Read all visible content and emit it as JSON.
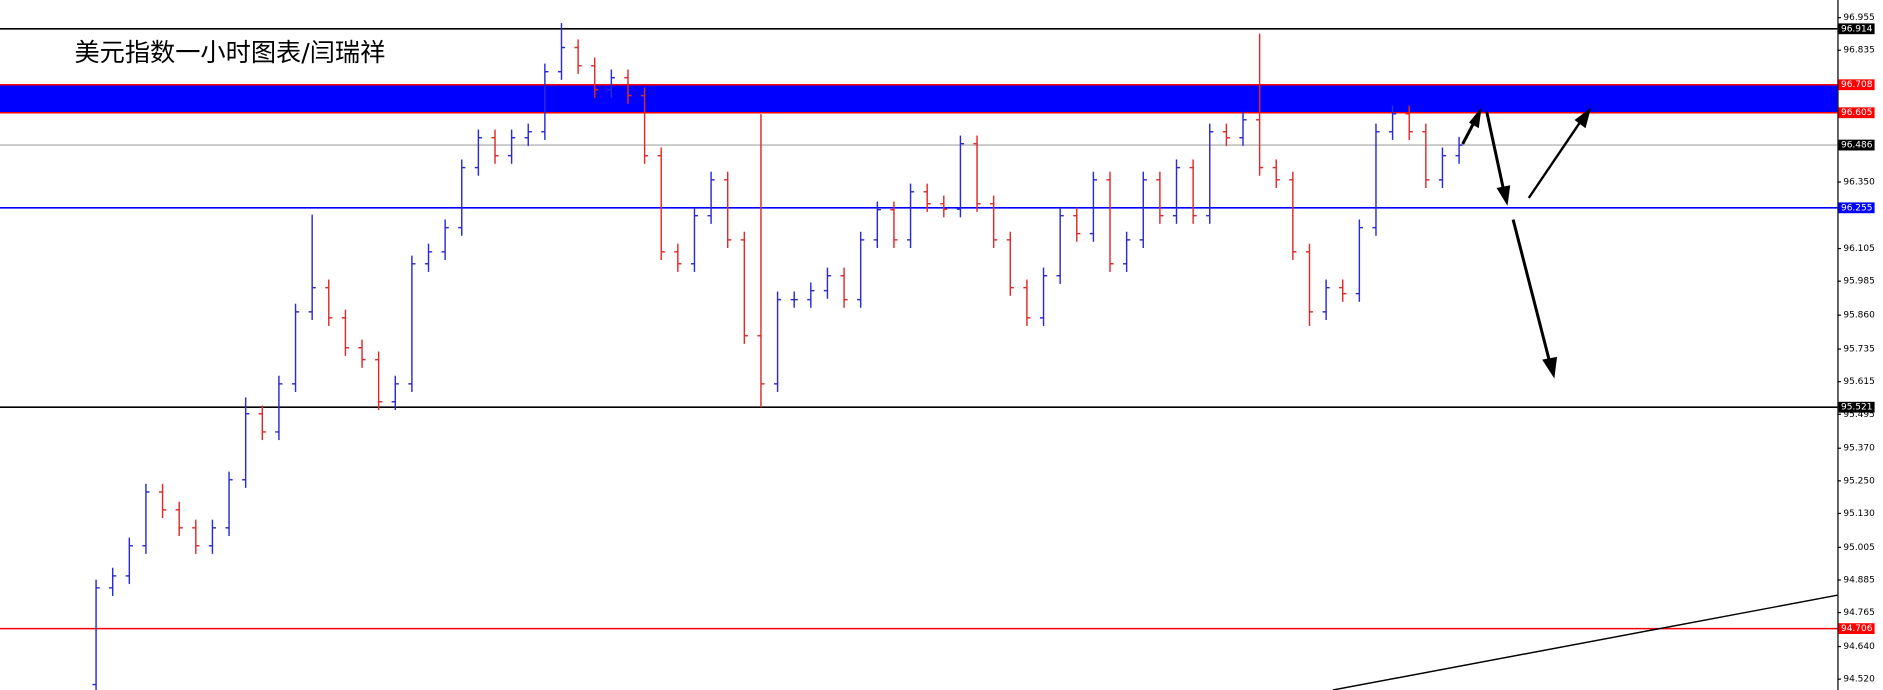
{
  "chart_data": {
    "type": "ohlc",
    "title": "美元指数一小时图表/闫瑞祥",
    "up_color": "#2b2bd6",
    "down_color": "#e02a2a",
    "open": [
      94.5,
      94.856,
      94.9,
      95.011,
      95.209,
      95.143,
      95.077,
      95.011,
      95.077,
      95.254,
      95.497,
      95.43,
      95.607,
      95.872,
      95.961,
      95.85,
      95.74,
      95.696,
      95.541,
      95.607,
      96.049,
      96.093,
      96.182,
      96.403,
      96.513,
      96.447,
      96.513,
      96.535,
      96.756,
      96.845,
      96.778,
      96.69,
      96.734,
      96.668,
      96.447,
      96.093,
      96.049,
      96.226,
      96.358,
      96.137,
      95.784,
      95.607,
      95.917,
      95.917,
      95.95,
      96.005,
      95.917,
      96.137,
      96.248,
      96.137,
      96.314,
      96.27,
      96.25,
      96.491,
      96.27,
      96.137,
      95.961,
      95.85,
      96.005,
      96.226,
      96.16,
      96.358,
      96.049,
      96.137,
      96.358,
      96.226,
      96.403,
      96.226,
      96.535,
      96.513,
      96.579,
      96.403,
      96.358,
      96.093,
      95.872,
      95.961,
      95.939,
      96.182,
      96.535,
      96.601,
      96.535,
      96.358,
      96.447
    ],
    "high": [
      94.886,
      94.93,
      95.041,
      95.239,
      95.239,
      95.173,
      95.107,
      95.107,
      95.284,
      95.557,
      95.527,
      95.637,
      95.902,
      96.23,
      95.991,
      95.88,
      95.77,
      95.726,
      95.637,
      96.079,
      96.123,
      96.212,
      96.433,
      96.543,
      96.543,
      96.543,
      96.565,
      96.786,
      96.935,
      96.875,
      96.808,
      96.764,
      96.764,
      96.698,
      96.477,
      96.123,
      96.256,
      96.388,
      96.388,
      96.167,
      96.6,
      95.947,
      95.947,
      95.98,
      96.035,
      96.035,
      96.167,
      96.278,
      96.278,
      96.344,
      96.344,
      96.3,
      96.521,
      96.521,
      96.3,
      96.167,
      95.991,
      96.035,
      96.256,
      96.256,
      96.388,
      96.388,
      96.167,
      96.388,
      96.388,
      96.433,
      96.433,
      96.565,
      96.565,
      96.609,
      96.896,
      96.433,
      96.388,
      96.123,
      95.991,
      95.991,
      96.212,
      96.565,
      96.631,
      96.631,
      96.565,
      96.477,
      96.516
    ],
    "low": [
      94.48,
      94.826,
      94.87,
      94.981,
      95.113,
      95.047,
      94.981,
      94.981,
      95.047,
      95.224,
      95.4,
      95.4,
      95.577,
      95.842,
      95.82,
      95.71,
      95.666,
      95.511,
      95.511,
      95.577,
      96.019,
      96.063,
      96.152,
      96.373,
      96.417,
      96.417,
      96.483,
      96.505,
      96.726,
      96.748,
      96.66,
      96.66,
      96.638,
      96.417,
      96.063,
      96.019,
      96.019,
      96.196,
      96.107,
      95.754,
      95.521,
      95.577,
      95.887,
      95.887,
      95.92,
      95.887,
      95.887,
      96.107,
      96.107,
      96.107,
      96.24,
      96.22,
      96.22,
      96.24,
      96.107,
      95.931,
      95.82,
      95.82,
      95.975,
      96.13,
      96.13,
      96.019,
      96.019,
      96.107,
      96.196,
      96.196,
      96.196,
      96.196,
      96.483,
      96.483,
      96.373,
      96.328,
      96.063,
      95.82,
      95.842,
      95.909,
      95.909,
      96.152,
      96.505,
      96.505,
      96.328,
      96.328,
      96.417
    ],
    "close": [
      94.856,
      94.9,
      95.011,
      95.209,
      95.143,
      95.077,
      95.011,
      95.077,
      95.254,
      95.497,
      95.43,
      95.607,
      95.872,
      95.961,
      95.85,
      95.74,
      95.696,
      95.541,
      95.607,
      96.049,
      96.093,
      96.182,
      96.403,
      96.513,
      96.447,
      96.513,
      96.535,
      96.756,
      96.845,
      96.778,
      96.69,
      96.734,
      96.668,
      96.447,
      96.093,
      96.049,
      96.226,
      96.358,
      96.137,
      95.784,
      95.607,
      95.917,
      95.917,
      95.95,
      96.005,
      95.917,
      96.137,
      96.248,
      96.137,
      96.314,
      96.27,
      96.25,
      96.491,
      96.27,
      96.137,
      95.961,
      95.85,
      96.005,
      96.226,
      96.16,
      96.358,
      96.049,
      96.137,
      96.358,
      96.226,
      96.403,
      96.226,
      96.535,
      96.513,
      96.579,
      96.403,
      96.358,
      96.093,
      95.872,
      95.961,
      95.939,
      96.182,
      96.535,
      96.601,
      96.535,
      96.358,
      96.447,
      96.486
    ],
    "ylim": [
      94.48,
      97.02
    ],
    "yticks": [
      96.955,
      96.835,
      {
        "value": 96.35,
        "label": "96.350"
      },
      96.105,
      95.985,
      {
        "value": 95.86,
        "label": "95.860"
      },
      95.735,
      95.615,
      95.495,
      {
        "value": 95.37,
        "label": "95.370"
      },
      {
        "value": 95.25,
        "label": "95.250"
      },
      {
        "value": 95.13,
        "label": "95.130"
      },
      95.005,
      94.885,
      94.765,
      {
        "value": 94.64,
        "label": "94.640"
      },
      {
        "value": 94.52,
        "label": "94.520"
      }
    ],
    "zone": {
      "ylim": [
        96.605,
        96.708
      ],
      "color": "#0000ff"
    },
    "levels": [
      {
        "value": 96.914,
        "color": "#000000"
      },
      {
        "value": 96.708,
        "color": "#ff0000"
      },
      {
        "value": 96.605,
        "color": "#ff0000"
      },
      {
        "value": 96.486,
        "color": "#c0c0c0",
        "box_color": "#000000"
      },
      {
        "value": 96.255,
        "color": "#0000ff"
      },
      {
        "value": 95.521,
        "color": "#000000"
      },
      {
        "value": 94.706,
        "color": "#ff0000"
      }
    ],
    "grid": false
  }
}
